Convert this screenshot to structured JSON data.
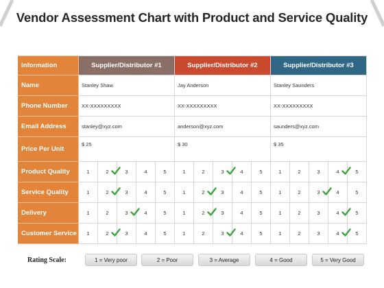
{
  "title": "Vendor Assessment Chart with Product and Service Quality",
  "headers": {
    "information": "Information",
    "supplier_1": "Supplier/Distributor #1",
    "supplier_2": "Supplier/Distributor #2",
    "supplier_3": "Supplier/Distributor #3"
  },
  "rows": {
    "name": {
      "label": "Name",
      "values": [
        "Stanley Shaw",
        "Jay Anderson",
        "Stanley Saunders"
      ]
    },
    "phone": {
      "label": "Phone Number",
      "values": [
        "XX-XXXXXXXXX",
        "XX-XXXXXXXXX",
        "XX-XXXXXXXXX"
      ]
    },
    "email": {
      "label": "Email Address",
      "values": [
        "stanley@xyz.com",
        "anderson@xyz.com",
        "saunders@xyz.com"
      ]
    },
    "price": {
      "label": "Price Per Unit",
      "values": [
        "$ 25",
        "$ 30",
        "$ 35"
      ]
    }
  },
  "scale_numbers": [
    "1",
    "2",
    "3",
    "4",
    "5"
  ],
  "ratings": [
    {
      "label": "Product Quality",
      "selected": [
        2,
        3,
        4
      ]
    },
    {
      "label": "Service Quality",
      "selected": [
        2,
        2,
        3
      ]
    },
    {
      "label": "Delivery",
      "selected": [
        3,
        2,
        4
      ]
    },
    {
      "label": "Customer Service",
      "selected": [
        2,
        3,
        4
      ]
    }
  ],
  "rating_scale": {
    "label": "Rating Scale:",
    "items": [
      "1 = Very poor",
      "2 = Poor",
      "3 = Average",
      "4 = Good",
      "5 = Very Good"
    ]
  },
  "colors": {
    "label_column": "#e2843a",
    "supplier_1_header": "#8a6f66",
    "supplier_2_header": "#c94a2f",
    "supplier_3_header": "#2f6784",
    "check_mark": "#3fa33f"
  }
}
